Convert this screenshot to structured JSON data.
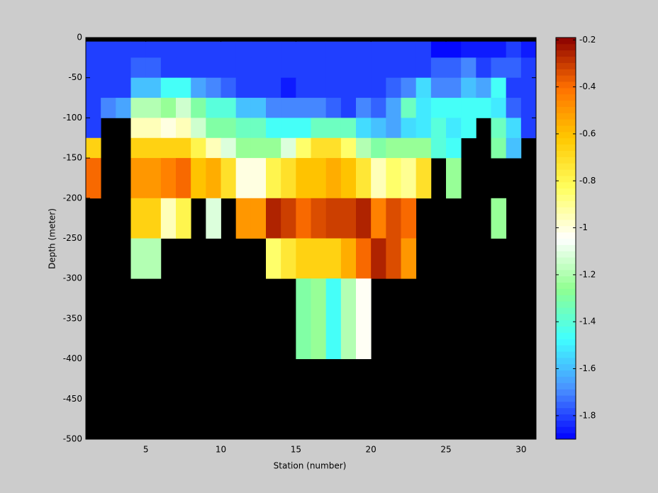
{
  "chart_data": {
    "type": "heatmap",
    "xlabel": "Station (number)",
    "ylabel": "Depth (meter)",
    "xlim": [
      1,
      31
    ],
    "xticks": [
      5,
      10,
      15,
      20,
      25,
      30
    ],
    "ylim": [
      -500,
      0
    ],
    "yticks": [
      0,
      -50,
      -100,
      -150,
      -200,
      -250,
      -300,
      -350,
      -400,
      -450,
      -500
    ],
    "x_edges": [
      1,
      2,
      3,
      4,
      5,
      6,
      7,
      8,
      9,
      10,
      11,
      12,
      13,
      14,
      15,
      16,
      17,
      18,
      19,
      20,
      21,
      22,
      23,
      24,
      25,
      26,
      27,
      28,
      29,
      30,
      31
    ],
    "y_edges": [
      0,
      -5,
      -25,
      -50,
      -75,
      -100,
      -125,
      -150,
      -200,
      -250,
      -300,
      -400,
      -500
    ],
    "missing_color": "#000000",
    "values": [
      [
        null,
        null,
        null,
        null,
        null,
        null,
        null,
        null,
        null,
        null,
        null,
        null,
        null,
        null,
        null,
        null,
        null,
        null,
        null,
        null,
        null,
        null,
        null,
        null,
        null,
        null,
        null,
        null,
        null,
        null
      ],
      [
        -1.8,
        -1.8,
        -1.8,
        -1.8,
        -1.8,
        -1.8,
        -1.8,
        -1.8,
        -1.8,
        -1.8,
        -1.8,
        -1.8,
        -1.8,
        -1.8,
        -1.8,
        -1.8,
        -1.8,
        -1.8,
        -1.8,
        -1.8,
        -1.8,
        -1.8,
        -1.8,
        -1.9,
        -1.9,
        -1.85,
        -1.85,
        -1.85,
        -1.8,
        -1.85
      ],
      [
        -1.8,
        -1.8,
        -1.8,
        -1.75,
        -1.75,
        -1.8,
        -1.8,
        -1.8,
        -1.8,
        -1.8,
        -1.8,
        -1.8,
        -1.8,
        -1.8,
        -1.8,
        -1.8,
        -1.8,
        -1.8,
        -1.8,
        -1.8,
        -1.8,
        -1.8,
        -1.8,
        -1.75,
        -1.75,
        -1.7,
        -1.8,
        -1.75,
        -1.75,
        -1.8
      ],
      [
        -1.8,
        -1.8,
        -1.8,
        -1.6,
        -1.6,
        -1.45,
        -1.45,
        -1.65,
        -1.7,
        -1.75,
        -1.8,
        -1.8,
        -1.8,
        -1.85,
        -1.8,
        -1.8,
        -1.8,
        -1.8,
        -1.8,
        -1.8,
        -1.75,
        -1.7,
        -1.55,
        -1.7,
        -1.7,
        -1.6,
        -1.65,
        -1.45,
        -1.8,
        -1.8
      ],
      [
        -1.8,
        -1.7,
        -1.65,
        -1.2,
        -1.2,
        -1.25,
        -1.15,
        -1.3,
        -1.4,
        -1.4,
        -1.6,
        -1.6,
        -1.7,
        -1.7,
        -1.7,
        -1.7,
        -1.75,
        -1.8,
        -1.7,
        -1.75,
        -1.65,
        -1.35,
        -1.5,
        -1.45,
        -1.45,
        -1.45,
        -1.45,
        -1.5,
        -1.75,
        -1.8
      ],
      [
        -1.8,
        null,
        null,
        -0.95,
        -0.95,
        -1.0,
        -0.95,
        -1.15,
        -1.3,
        -1.3,
        -1.35,
        -1.35,
        -1.45,
        -1.45,
        -1.45,
        -1.35,
        -1.35,
        -1.35,
        -1.55,
        -1.6,
        -1.65,
        -1.55,
        -1.5,
        -1.4,
        -1.5,
        -1.45,
        null,
        -1.35,
        -1.55,
        -1.8
      ],
      [
        -0.65,
        null,
        null,
        -0.65,
        -0.65,
        -0.65,
        -0.65,
        -0.8,
        -0.95,
        -1.1,
        -1.25,
        -1.25,
        -1.25,
        -1.1,
        -0.85,
        -0.7,
        -0.7,
        -0.85,
        -1.2,
        -1.3,
        -1.25,
        -1.25,
        -1.25,
        -1.4,
        -1.45,
        null,
        null,
        -1.3,
        -1.6,
        null
      ],
      [
        -0.4,
        null,
        null,
        -0.5,
        -0.5,
        -0.45,
        -0.4,
        -0.6,
        -0.55,
        -0.7,
        -1.0,
        -1.0,
        -0.8,
        -0.7,
        -0.6,
        -0.6,
        -0.55,
        -0.6,
        -0.75,
        -0.95,
        -0.85,
        -0.9,
        -0.7,
        null,
        -1.25,
        null,
        null,
        null,
        null,
        null
      ],
      [
        null,
        null,
        null,
        -0.65,
        -0.65,
        -0.95,
        -0.8,
        null,
        -1.1,
        null,
        -0.5,
        -0.5,
        -0.25,
        -0.3,
        -0.4,
        -0.35,
        -0.3,
        -0.3,
        -0.25,
        -0.45,
        -0.35,
        -0.4,
        null,
        null,
        null,
        null,
        null,
        -1.25,
        null,
        null
      ],
      [
        null,
        null,
        null,
        -1.2,
        -1.2,
        null,
        null,
        null,
        null,
        null,
        null,
        null,
        -0.85,
        -0.75,
        -0.65,
        -0.65,
        -0.65,
        -0.55,
        -0.4,
        -0.25,
        -0.35,
        -0.5,
        null,
        null,
        null,
        null,
        null,
        null,
        null,
        null
      ],
      [
        null,
        null,
        null,
        null,
        null,
        null,
        null,
        null,
        null,
        null,
        null,
        null,
        null,
        null,
        -1.3,
        -1.25,
        -1.45,
        -1.2,
        -1.02,
        null,
        null,
        null,
        null,
        null,
        null,
        null,
        null,
        null,
        null,
        null
      ],
      [
        null,
        null,
        null,
        null,
        null,
        null,
        null,
        null,
        null,
        null,
        null,
        null,
        null,
        null,
        null,
        null,
        null,
        null,
        null,
        null,
        null,
        null,
        null,
        null,
        null,
        null,
        null,
        null,
        null,
        null
      ]
    ],
    "colorbar": {
      "clim": [
        -1.9,
        -0.19
      ],
      "ticks": [
        -0.2,
        -0.4,
        -0.6,
        -0.8,
        -1,
        -1.2,
        -1.4,
        -1.6,
        -1.8
      ],
      "levels": 64,
      "colormap": [
        "#0000ff",
        "#4a90ff",
        "#40ffff",
        "#90ff90",
        "#ffffff",
        "#ffff60",
        "#ffc800",
        "#ff7000",
        "#8b0000"
      ]
    }
  }
}
